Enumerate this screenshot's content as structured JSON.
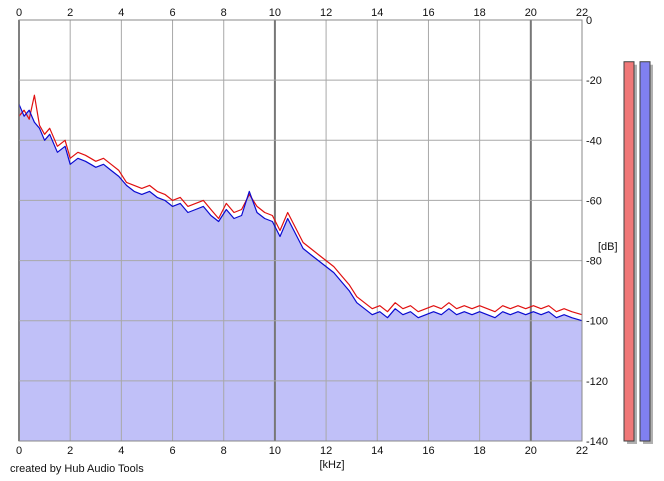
{
  "credit": "created by Hub Audio Tools",
  "chart_data": {
    "type": "line",
    "xlabel": "[kHz]",
    "ylabel": "[dB]",
    "xlim": [
      0,
      22
    ],
    "ylim": [
      -140,
      0
    ],
    "x_ticks": [
      0,
      2,
      4,
      6,
      8,
      10,
      12,
      14,
      16,
      18,
      20,
      22
    ],
    "y_ticks": [
      0,
      -20,
      -40,
      -60,
      -80,
      -100,
      -120,
      -140
    ],
    "grid": true,
    "area_fill_color": "#c0c0f8",
    "series": [
      {
        "color": "#e01010",
        "x": [
          0.0,
          0.2,
          0.4,
          0.6,
          0.8,
          1.0,
          1.2,
          1.5,
          1.8,
          2.0,
          2.3,
          2.6,
          2.8,
          3.0,
          3.3,
          3.6,
          3.9,
          4.2,
          4.5,
          4.8,
          5.1,
          5.4,
          5.7,
          6.0,
          6.3,
          6.6,
          6.9,
          7.2,
          7.5,
          7.8,
          8.1,
          8.4,
          8.7,
          9.0,
          9.3,
          9.6,
          9.9,
          10.2,
          10.5,
          10.8,
          11.1,
          11.4,
          11.7,
          12.0,
          12.3,
          12.6,
          12.9,
          13.2,
          13.5,
          13.8,
          14.1,
          14.4,
          14.7,
          15.0,
          15.3,
          15.6,
          15.9,
          16.2,
          16.5,
          16.8,
          17.1,
          17.4,
          17.7,
          18.0,
          18.3,
          18.6,
          18.9,
          19.2,
          19.5,
          19.8,
          20.1,
          20.4,
          20.7,
          21.0,
          21.3,
          21.6,
          22.0
        ],
        "y": [
          -32,
          -30,
          -33,
          -25,
          -35,
          -38,
          -36,
          -42,
          -40,
          -46,
          -44,
          -45,
          -46,
          -47,
          -46,
          -48,
          -50,
          -54,
          -55,
          -56,
          -55,
          -57,
          -58,
          -60,
          -59,
          -62,
          -61,
          -60,
          -63,
          -66,
          -61,
          -64,
          -63,
          -58,
          -62,
          -64,
          -65,
          -70,
          -64,
          -69,
          -74,
          -76,
          -78,
          -80,
          -82,
          -85,
          -88,
          -92,
          -94,
          -96,
          -95,
          -97,
          -94,
          -96,
          -95,
          -97,
          -96,
          -95,
          -96,
          -94,
          -96,
          -95,
          -96,
          -95,
          -96,
          -97,
          -95,
          -96,
          -95,
          -96,
          -95,
          -96,
          -95,
          -97,
          -96,
          -97,
          -98
        ]
      },
      {
        "color": "#0a0ad0",
        "x": [
          0.0,
          0.2,
          0.4,
          0.6,
          0.8,
          1.0,
          1.2,
          1.5,
          1.8,
          2.0,
          2.3,
          2.6,
          2.8,
          3.0,
          3.3,
          3.6,
          3.9,
          4.2,
          4.5,
          4.8,
          5.1,
          5.4,
          5.7,
          6.0,
          6.3,
          6.6,
          6.9,
          7.2,
          7.5,
          7.8,
          8.1,
          8.4,
          8.7,
          9.0,
          9.3,
          9.6,
          9.9,
          10.2,
          10.5,
          10.8,
          11.1,
          11.4,
          11.7,
          12.0,
          12.3,
          12.6,
          12.9,
          13.2,
          13.5,
          13.8,
          14.1,
          14.4,
          14.7,
          15.0,
          15.3,
          15.6,
          15.9,
          16.2,
          16.5,
          16.8,
          17.1,
          17.4,
          17.7,
          18.0,
          18.3,
          18.6,
          18.9,
          19.2,
          19.5,
          19.8,
          20.1,
          20.4,
          20.7,
          21.0,
          21.3,
          21.6,
          22.0
        ],
        "y": [
          -28,
          -32,
          -30,
          -34,
          -36,
          -40,
          -38,
          -44,
          -42,
          -48,
          -46,
          -47,
          -48,
          -49,
          -48,
          -50,
          -52,
          -55,
          -57,
          -58,
          -57,
          -59,
          -60,
          -62,
          -61,
          -64,
          -63,
          -62,
          -65,
          -67,
          -63,
          -66,
          -65,
          -57,
          -64,
          -66,
          -67,
          -72,
          -66,
          -71,
          -76,
          -78,
          -80,
          -82,
          -84,
          -87,
          -90,
          -94,
          -96,
          -98,
          -97,
          -99,
          -96,
          -98,
          -97,
          -99,
          -98,
          -97,
          -98,
          -96,
          -98,
          -97,
          -98,
          -97,
          -98,
          -99,
          -97,
          -98,
          -97,
          -98,
          -97,
          -98,
          -97,
          -99,
          -98,
          -99,
          -100
        ]
      }
    ],
    "level_meters": [
      {
        "color": "#f07878",
        "level": 0.98
      },
      {
        "color": "#8080f0",
        "level": 0.98
      }
    ]
  }
}
